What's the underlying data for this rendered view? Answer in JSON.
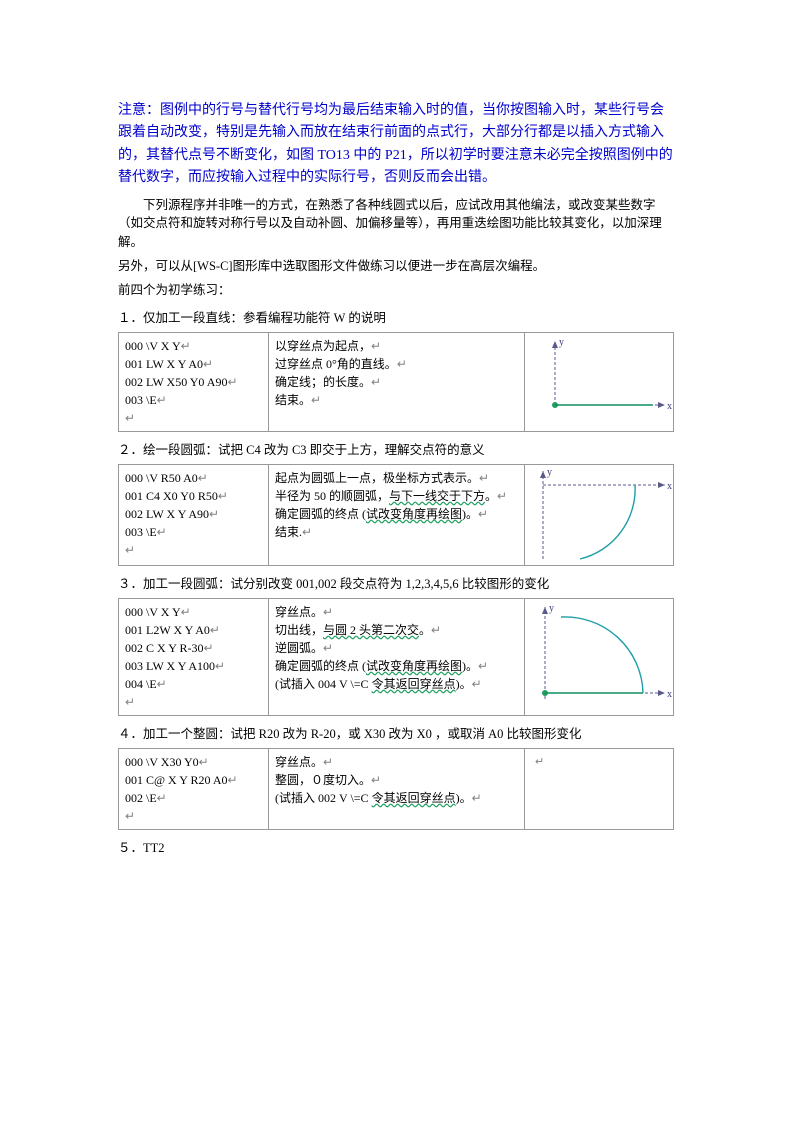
{
  "intro": {
    "p1": "注意：图例中的行号与替代行号均为最后结束输入时的值，当你按图输入时，某些行号会跟着自动改变，特别是先输入而放在结束行前面的点式行，大部分行都是以插入方式输入的，其替代点号不断变化，如图 TO13 中的  P21，所以初学时要注意未必完全按照图例中的替代数字，而应按输入过程中的实际行号，否则反而会出错。",
    "p2": "　　下列源程序并非唯一的方式，在熟悉了各种线圆式以后，应试改用其他编法，或改变某些数字（如交点符和旋转对称行号以及自动补圆、加偏移量等），再用重迭绘图功能比较其变化，以加深理解。",
    "p3": "另外，可以从[WS-C]图形库中选取图形文件做练习以便进一步在高层次编程。",
    "p4": "前四个为初学练习："
  },
  "examples": [
    {
      "title": "１．仅加工一段直线：参看编程功能符 W 的说明",
      "code": [
        "000 \\V X Y",
        "001 LW X Y A0",
        "002 LW X50 Y0 A90",
        "003 \\E"
      ],
      "desc": [
        {
          "t": "以穿丝点为起点，"
        },
        {
          "t": "过穿丝点 0°角的直线。"
        },
        {
          "t": "确定线；的长度。"
        },
        {
          "t": "结束。"
        }
      ],
      "fig": "line"
    },
    {
      "title": "２．绘一段圆弧：试把 C4 改为 C3 即交于上方，理解交点符的意义",
      "code": [
        "000 \\V R50 A0",
        "001 C4 X0 Y0 R50",
        "002 LW X Y A90",
        "003 \\E"
      ],
      "desc": [
        {
          "t": "起点为圆弧上一点，极坐标方式表示。"
        },
        {
          "t": "半径为 50 的顺圆弧，",
          "wavy": "与下一线交于下方",
          "after": "。"
        },
        {
          "t": "确定圆弧的终点 (",
          "wavy": "试改变角度再绘图",
          "after": ")。"
        },
        {
          "t": "结束."
        }
      ],
      "fig": "arc1"
    },
    {
      "title": "３．加工一段圆弧：试分别改变 001,002 段交点符为 1,2,3,4,5,6 比较图形的变化",
      "code": [
        "000 \\V X Y",
        "001 L2W X Y A0",
        "002 C X Y R-30",
        "003 LW X Y A100",
        "004 \\E"
      ],
      "desc": [
        {
          "t": "穿丝点。"
        },
        {
          "t": "切出线，",
          "wavy": "与圆 2 头第二次交",
          "after": "。"
        },
        {
          "t": "逆圆弧。"
        },
        {
          "t": "确定圆弧的终点 (",
          "wavy": "试改变角度再绘图",
          "after": ")。"
        },
        {
          "t": "(试插入 004 V \\=C ",
          "wavy": "令其返回穿丝点",
          "after": ")。"
        }
      ],
      "fig": "arc2"
    },
    {
      "title": "４．加工一个整圆：试把 R20 改为 R-20，或 X30 改为 X0 ，或取消 A0 比较图形变化",
      "code": [
        "000 \\V X30 Y0",
        "001 C@ X Y R20 A0",
        "002 \\E"
      ],
      "desc": [
        {
          "t": "穿丝点。"
        },
        {
          "t": "整圆，０度切入。"
        },
        {
          "t": "(试插入 002 V \\=C ",
          "wavy": "令其返回穿丝点",
          "after": ")。"
        }
      ],
      "fig": "none"
    }
  ],
  "last": "５．TT2",
  "colors": {
    "axis": "#5a5a8a",
    "axis_label": "#3a3a7a",
    "curve": "#1f9ea8",
    "line_green": "#0f8f5f",
    "dot": "#1fa060"
  }
}
